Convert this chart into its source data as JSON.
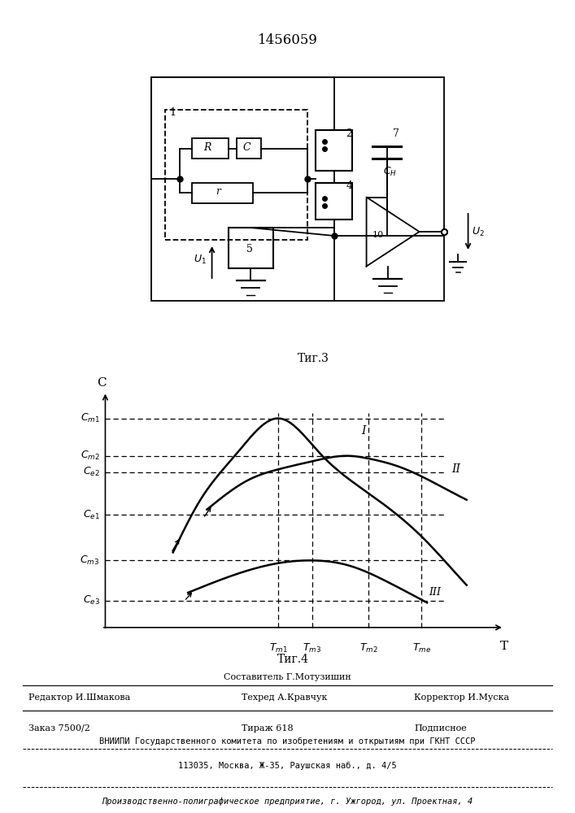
{
  "title": "1456059",
  "fig3_label": "Τиг.3",
  "fig4_label": "Τиг.4",
  "footer_line1": "Составитель Г.Мотузишин",
  "footer_line2_left": "Редактор И.Шмакова",
  "footer_line2_mid": "Техред А.Кравчук",
  "footer_line2_right": "Корректор И.Муска",
  "footer_order": "Заказ 7500/2",
  "footer_tirazh": "Тираж 618",
  "footer_podp": "Подписное",
  "footer_vniiipi": "ВНИИПИ Государственного комитета по изобретениям и открытиям при ГКНТ СССР",
  "footer_address": "113035, Москва, Ж-35, Раушская наб., д. 4/5",
  "footer_production": "Производственно-полиграфическое предприятие, г. Ужгород, ул. Проектная, 4"
}
